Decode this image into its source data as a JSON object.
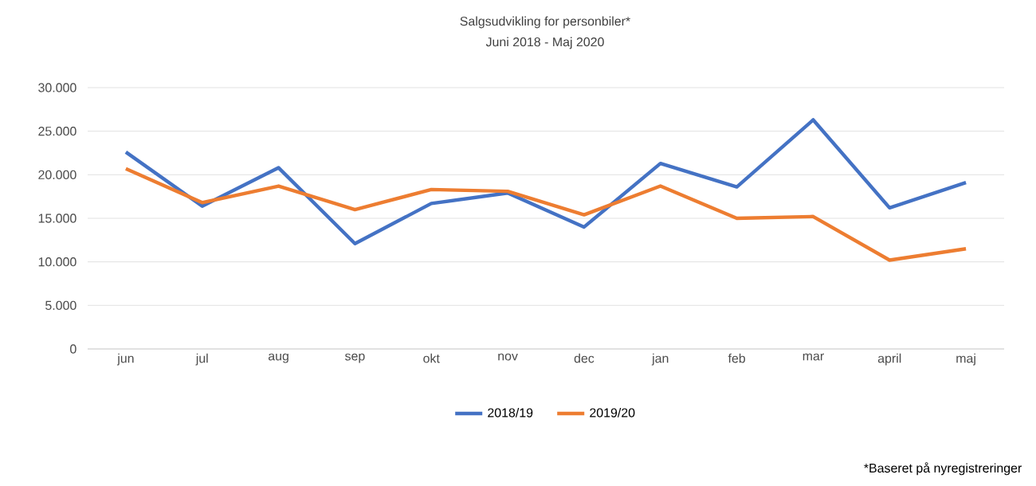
{
  "chart_data": {
    "type": "line",
    "title": "Salgsudvikling for personbiler*",
    "subtitle": "Juni 2018 - Maj 2020",
    "categories": [
      "jun",
      "jul",
      "aug",
      "sep",
      "okt",
      "nov",
      "dec",
      "jan",
      "feb",
      "mar",
      "april",
      "maj"
    ],
    "series": [
      {
        "name": "2018/19",
        "color": "#4472c4",
        "values": [
          22600,
          16400,
          20800,
          12100,
          16700,
          17900,
          14000,
          21300,
          18600,
          26300,
          16200,
          19100
        ]
      },
      {
        "name": "2019/20",
        "color": "#ed7d31",
        "values": [
          20700,
          16800,
          18700,
          16000,
          18300,
          18100,
          15400,
          18700,
          15000,
          15200,
          10200,
          11500
        ]
      }
    ],
    "ylim": [
      0,
      30000
    ],
    "yticks": [
      {
        "value": 0,
        "label": "0"
      },
      {
        "value": 5000,
        "label": "5.000"
      },
      {
        "value": 10000,
        "label": "10.000"
      },
      {
        "value": 15000,
        "label": "15.000"
      },
      {
        "value": 20000,
        "label": "20.000"
      },
      {
        "value": 25000,
        "label": "25.000"
      },
      {
        "value": 30000,
        "label": "30.000"
      }
    ],
    "grid": "y",
    "legend": "bottom",
    "marker": "none",
    "line_style": "solid",
    "annotations": [
      "*Baseret på nyregistreringer"
    ]
  }
}
